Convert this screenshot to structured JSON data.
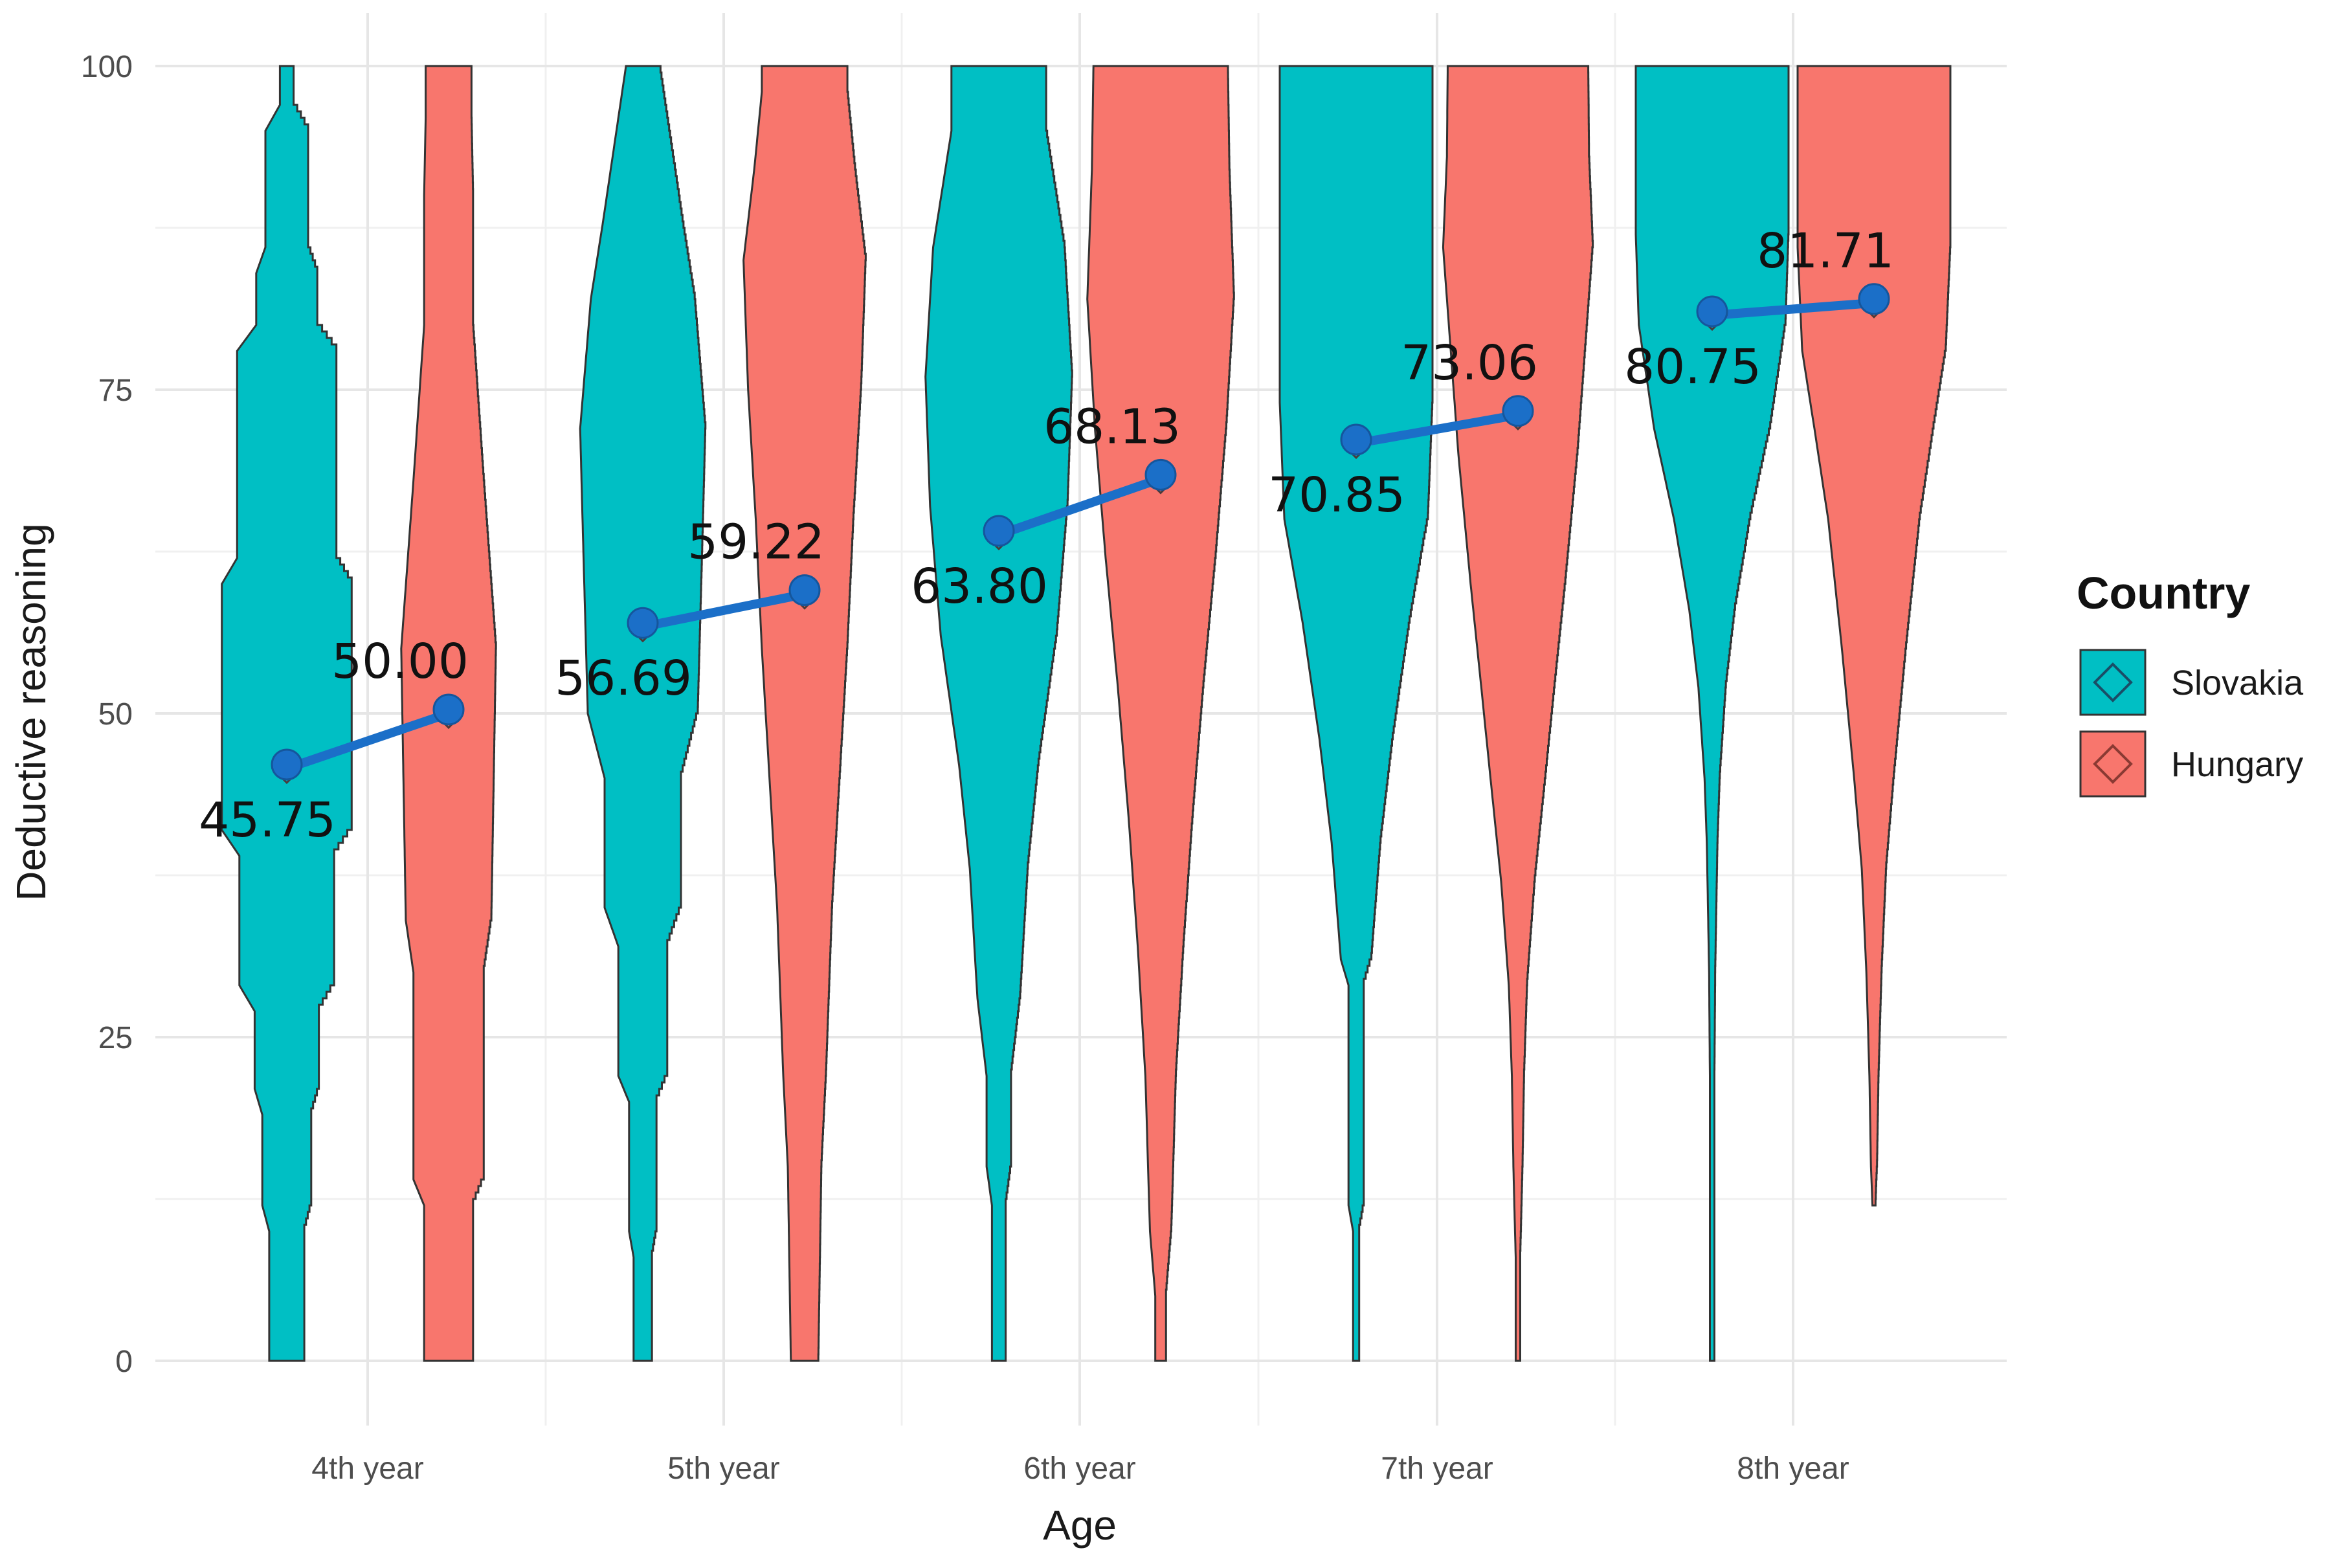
{
  "chart_data": {
    "type": "violin",
    "xlabel": "Age",
    "ylabel": "Deductive reasoning",
    "ylim": [
      0,
      100
    ],
    "yticks": [
      "0",
      "25",
      "50",
      "75",
      "100"
    ],
    "categories": [
      "4th year",
      "5th year",
      "6th year",
      "7th year",
      "8th year"
    ],
    "series": [
      {
        "name": "Slovakia",
        "color": "#00BFC4",
        "values": [
          45.75,
          56.69,
          63.8,
          70.85,
          80.75
        ],
        "labels": [
          "45.75",
          "56.69",
          "63.80",
          "70.85",
          "80.75"
        ],
        "density_width_profile": [
          [
            [
              0,
              0.23
            ],
            [
              10,
              0.23
            ],
            [
              12,
              0.32
            ],
            [
              19,
              0.32
            ],
            [
              21,
              0.42
            ],
            [
              27,
              0.42
            ],
            [
              29,
              0.62
            ],
            [
              39,
              0.62
            ],
            [
              41,
              0.85
            ],
            [
              60,
              0.85
            ],
            [
              62,
              0.65
            ],
            [
              78,
              0.65
            ],
            [
              80,
              0.4
            ],
            [
              84,
              0.4
            ],
            [
              86,
              0.28
            ],
            [
              95,
              0.28
            ],
            [
              97,
              0.09
            ],
            [
              100,
              0.09
            ]
          ],
          [
            [
              0,
              0.12
            ],
            [
              8,
              0.12
            ],
            [
              10,
              0.18
            ],
            [
              20,
              0.18
            ],
            [
              22,
              0.32
            ],
            [
              32,
              0.32
            ],
            [
              35,
              0.5
            ],
            [
              45,
              0.5
            ],
            [
              50,
              0.72
            ],
            [
              63,
              0.78
            ],
            [
              72,
              0.82
            ],
            [
              82,
              0.68
            ],
            [
              88,
              0.52
            ],
            [
              96,
              0.32
            ],
            [
              100,
              0.22
            ]
          ],
          [
            [
              0,
              0.09
            ],
            [
              12,
              0.09
            ],
            [
              15,
              0.16
            ],
            [
              22,
              0.16
            ],
            [
              28,
              0.28
            ],
            [
              38,
              0.38
            ],
            [
              46,
              0.52
            ],
            [
              56,
              0.76
            ],
            [
              66,
              0.9
            ],
            [
              76,
              0.96
            ],
            [
              86,
              0.86
            ],
            [
              95,
              0.62
            ],
            [
              100,
              0.62
            ]
          ],
          [
            [
              0,
              0.04
            ],
            [
              10,
              0.04
            ],
            [
              12,
              0.1
            ],
            [
              29,
              0.1
            ],
            [
              31,
              0.2
            ],
            [
              40,
              0.32
            ],
            [
              48,
              0.48
            ],
            [
              57,
              0.7
            ],
            [
              65,
              0.94
            ],
            [
              74,
              1.0
            ],
            [
              85,
              1.0
            ],
            [
              100,
              1.0
            ]
          ],
          [
            [
              0,
              0.03
            ],
            [
              22,
              0.03
            ],
            [
              30,
              0.04
            ],
            [
              40,
              0.07
            ],
            [
              45,
              0.1
            ],
            [
              52,
              0.18
            ],
            [
              58,
              0.3
            ],
            [
              65,
              0.5
            ],
            [
              72,
              0.76
            ],
            [
              80,
              0.96
            ],
            [
              87,
              1.0
            ],
            [
              100,
              1.0
            ]
          ]
        ]
      },
      {
        "name": "Hungary",
        "color": "#F8766D",
        "values": [
          50.0,
          59.22,
          68.13,
          73.06,
          81.71
        ],
        "labels": [
          "50.00",
          "59.22",
          "68.13",
          "73.06",
          "81.71"
        ],
        "density_width_profile": [
          [
            [
              0,
              0.32
            ],
            [
              12,
              0.32
            ],
            [
              14,
              0.46
            ],
            [
              30,
              0.46
            ],
            [
              34,
              0.56
            ],
            [
              55,
              0.62
            ],
            [
              68,
              0.46
            ],
            [
              80,
              0.32
            ],
            [
              90,
              0.32
            ],
            [
              96,
              0.3
            ],
            [
              100,
              0.3
            ]
          ],
          [
            [
              0,
              0.18
            ],
            [
              15,
              0.22
            ],
            [
              22,
              0.28
            ],
            [
              35,
              0.36
            ],
            [
              45,
              0.46
            ],
            [
              55,
              0.56
            ],
            [
              65,
              0.64
            ],
            [
              75,
              0.74
            ],
            [
              85,
              0.8
            ],
            [
              92,
              0.66
            ],
            [
              98,
              0.56
            ],
            [
              100,
              0.56
            ]
          ],
          [
            [
              0,
              0.07
            ],
            [
              5,
              0.07
            ],
            [
              10,
              0.14
            ],
            [
              22,
              0.2
            ],
            [
              32,
              0.3
            ],
            [
              42,
              0.42
            ],
            [
              52,
              0.56
            ],
            [
              62,
              0.72
            ],
            [
              72,
              0.86
            ],
            [
              82,
              0.96
            ],
            [
              92,
              0.9
            ],
            [
              100,
              0.88
            ]
          ],
          [
            [
              0,
              0.03
            ],
            [
              8,
              0.03
            ],
            [
              15,
              0.06
            ],
            [
              22,
              0.08
            ],
            [
              29,
              0.12
            ],
            [
              37,
              0.22
            ],
            [
              45,
              0.36
            ],
            [
              52,
              0.48
            ],
            [
              60,
              0.62
            ],
            [
              70,
              0.78
            ],
            [
              78,
              0.88
            ],
            [
              86,
              0.98
            ],
            [
              93,
              0.93
            ],
            [
              100,
              0.92
            ]
          ],
          [
            [
              12,
              0.02
            ],
            [
              15,
              0.04
            ],
            [
              22,
              0.06
            ],
            [
              30,
              0.1
            ],
            [
              38,
              0.16
            ],
            [
              45,
              0.26
            ],
            [
              55,
              0.42
            ],
            [
              65,
              0.6
            ],
            [
              72,
              0.78
            ],
            [
              78,
              0.94
            ],
            [
              86,
              1.0
            ],
            [
              100,
              1.0
            ]
          ]
        ]
      }
    ],
    "legend": {
      "title": "Country",
      "position": "right"
    }
  }
}
